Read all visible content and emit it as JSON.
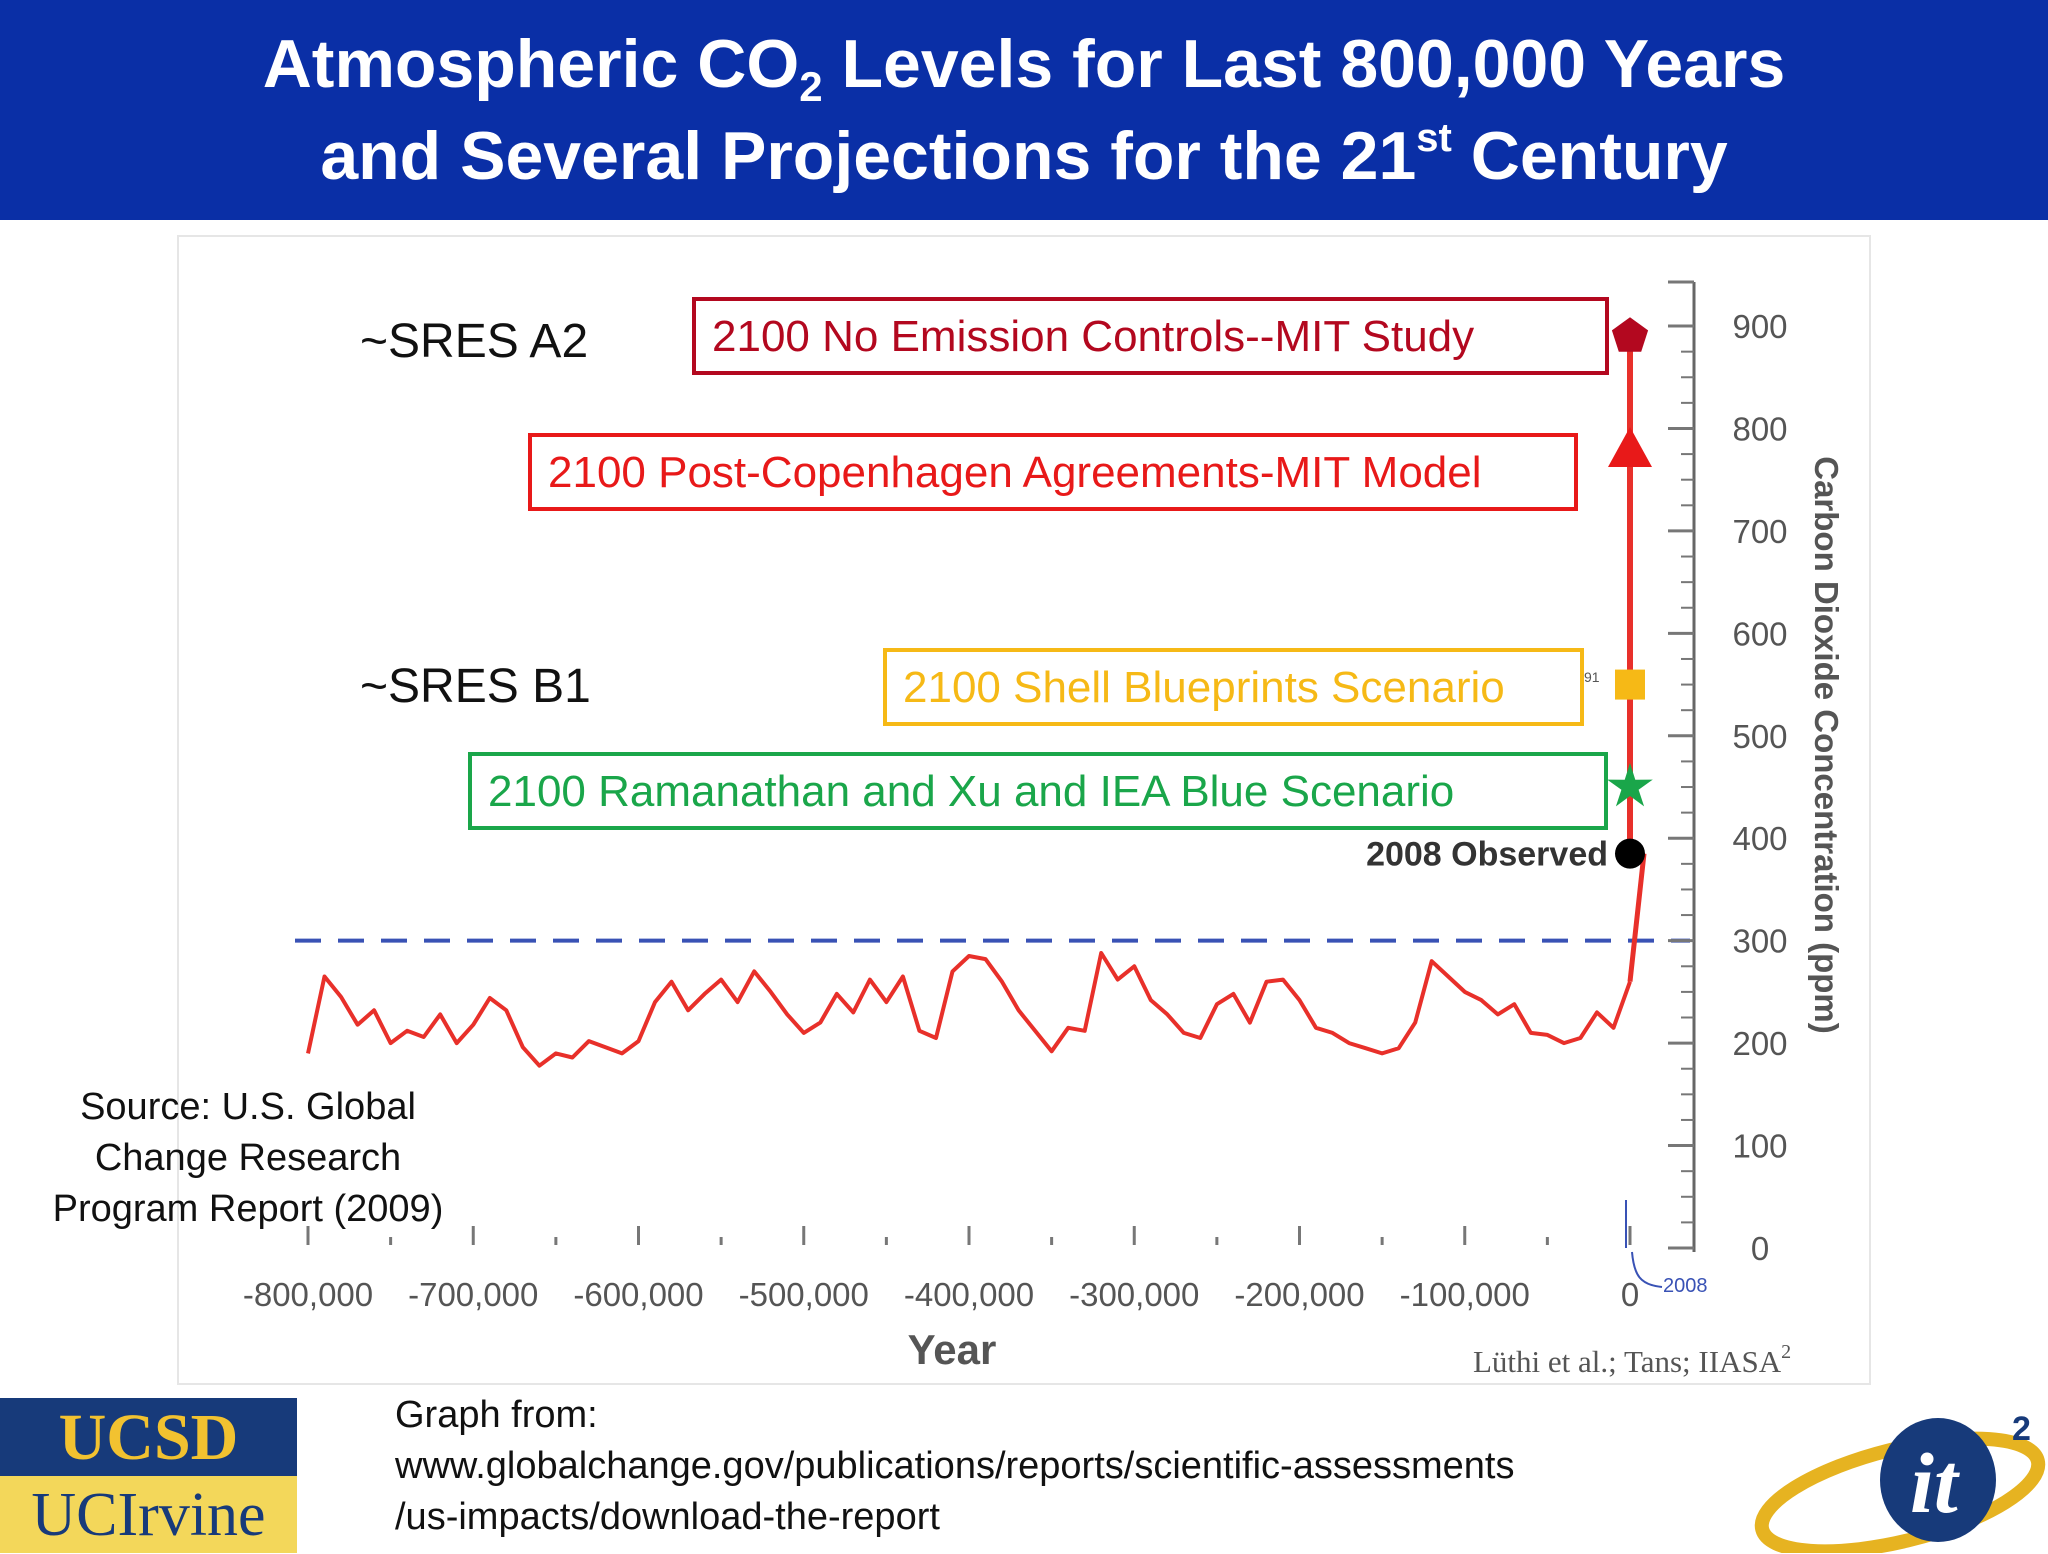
{
  "title": {
    "line1_a": "Atmospheric CO",
    "line1_sub": "2",
    "line1_b": " Levels for Last 800,000 Years",
    "line2_a": "and Several Projections for the 21",
    "line2_sup": "st",
    "line2_b": " Century"
  },
  "chart_data": {
    "type": "line",
    "xlabel": "Year",
    "ylabel": "Carbon Dioxide Concentration (ppm)",
    "xlim": [
      -800000,
      2100
    ],
    "ylim": [
      0,
      900
    ],
    "x_ticks": [
      "-800,000",
      "-700,000",
      "-600,000",
      "-500,000",
      "-400,000",
      "-300,000",
      "-200,000",
      "-100,000",
      "0"
    ],
    "x_tick_values": [
      -800000,
      -700000,
      -600000,
      -500000,
      -400000,
      -300000,
      -200000,
      -100000,
      0
    ],
    "y_ticks": [
      0,
      100,
      200,
      300,
      400,
      500,
      600,
      700,
      800,
      900
    ],
    "reference_line": 300,
    "x_marker_label": "2008",
    "credit": "Lüthi et al.; Tans; IIASA",
    "credit_sup": "2",
    "series": [
      {
        "name": "",
        "color": "#e8302a",
        "x": [
          -800000,
          -790000,
          -780000,
          -770000,
          -760000,
          -750000,
          -740000,
          -730000,
          -720000,
          -710000,
          -700000,
          -690000,
          -680000,
          -670000,
          -660000,
          -650000,
          -640000,
          -630000,
          -620000,
          -610000,
          -600000,
          -590000,
          -580000,
          -570000,
          -560000,
          -550000,
          -540000,
          -530000,
          -520000,
          -510000,
          -500000,
          -490000,
          -480000,
          -470000,
          -460000,
          -450000,
          -440000,
          -430000,
          -420000,
          -410000,
          -400000,
          -390000,
          -380000,
          -370000,
          -360000,
          -350000,
          -340000,
          -330000,
          -320000,
          -310000,
          -300000,
          -290000,
          -280000,
          -270000,
          -260000,
          -250000,
          -240000,
          -230000,
          -220000,
          -210000,
          -200000,
          -190000,
          -180000,
          -170000,
          -160000,
          -150000,
          -140000,
          -130000,
          -120000,
          -110000,
          -100000,
          -90000,
          -80000,
          -70000,
          -60000,
          -50000,
          -40000,
          -30000,
          -20000,
          -10000,
          0
        ],
        "y": [
          190,
          265,
          245,
          218,
          232,
          200,
          212,
          206,
          228,
          200,
          218,
          244,
          232,
          196,
          178,
          190,
          186,
          202,
          196,
          190,
          202,
          240,
          260,
          232,
          248,
          262,
          240,
          270,
          250,
          228,
          210,
          220,
          248,
          230,
          262,
          240,
          265,
          212,
          205,
          270,
          285,
          282,
          260,
          232,
          212,
          192,
          215,
          212,
          288,
          262,
          275,
          242,
          228,
          210,
          205,
          238,
          248,
          220,
          260,
          262,
          242,
          215,
          210,
          200,
          195,
          190,
          195,
          220,
          280,
          265,
          250,
          242,
          228,
          238,
          210,
          208,
          200,
          205,
          230,
          215,
          260
        ],
        "continuation": {
          "x": [
            0,
            2008
          ],
          "y": [
            260,
            385
          ]
        }
      }
    ],
    "projections": [
      {
        "label": "2008 Observed",
        "x": 2008,
        "value": 385,
        "marker": "circle",
        "color": "#000000"
      },
      {
        "label": "2100 Ramanathan and Xu and IEA Blue Scenario",
        "x": 2100,
        "value": 450,
        "marker": "star",
        "color": "#1aa64a"
      },
      {
        "label": "2100 Shell Blueprints Scenario",
        "x": 2100,
        "value": 550,
        "marker": "square",
        "color": "#f6b916"
      },
      {
        "label": "2100 Post-Copenhagen Agreements-MIT Model",
        "x": 2100,
        "value": 780,
        "marker": "triangle",
        "color": "#e81919"
      },
      {
        "label": "2100 No Emission Controls--MIT Study",
        "x": 2100,
        "value": 890,
        "marker": "pentagon",
        "color": "#b3081f"
      }
    ],
    "annotations": {
      "sres_a2": "~SRES A2",
      "sres_b1": "~SRES B1",
      "stray_text": "91"
    }
  },
  "source_lines": [
    "Source: U.S. Global",
    "Change Research",
    "Program Report (2009)"
  ],
  "graph_from_lines": [
    "Graph from:",
    "www.globalchange.gov/publications/reports/scientific-assessments",
    "/us-impacts/download-the-report"
  ],
  "logos": {
    "ucsd_top": "UCSD",
    "ucsd_bottom": "UCIrvine",
    "it2": "it",
    "it2_sup": "2"
  }
}
